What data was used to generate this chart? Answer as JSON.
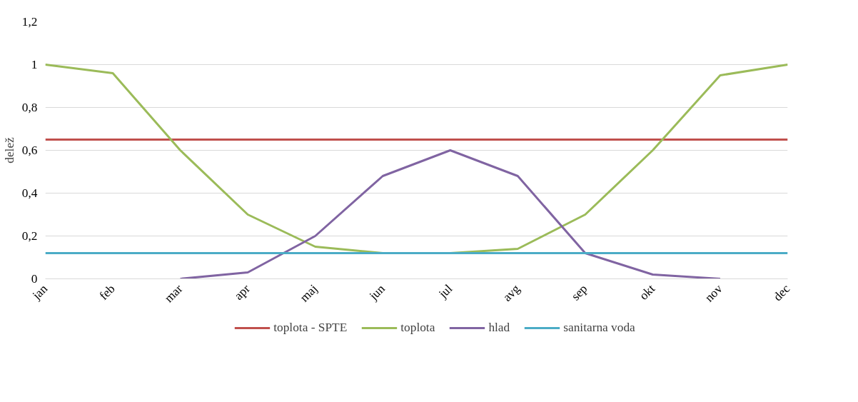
{
  "chart_data": {
    "type": "line",
    "ylabel": "delež",
    "categories": [
      "jan",
      "feb",
      "mar",
      "apr",
      "maj",
      "jun",
      "jul",
      "avg",
      "sep",
      "okt",
      "nov",
      "dec"
    ],
    "series": [
      {
        "name": "toplota - SPTE",
        "color": "#c0504d",
        "values": [
          0.65,
          0.65,
          0.65,
          0.65,
          0.65,
          0.65,
          0.65,
          0.65,
          0.65,
          0.65,
          0.65,
          0.65
        ]
      },
      {
        "name": "toplota",
        "color": "#9bbb59",
        "values": [
          1,
          0.96,
          0.6,
          0.3,
          0.15,
          0.12,
          0.12,
          0.14,
          0.3,
          0.6,
          0.95,
          1
        ]
      },
      {
        "name": "hlad",
        "color": "#8064a2",
        "values": [
          null,
          null,
          0,
          0.03,
          0.2,
          0.48,
          0.6,
          0.48,
          0.12,
          0.02,
          0,
          null
        ]
      },
      {
        "name": "sanitarna voda",
        "color": "#4bacc6",
        "values": [
          0.12,
          0.12,
          0.12,
          0.12,
          0.12,
          0.12,
          0.12,
          0.12,
          0.12,
          0.12,
          0.12,
          0.12
        ]
      }
    ],
    "ylim": [
      0,
      1.2
    ],
    "yticks": [
      0,
      {
        "value": 0.2,
        "label": "0,2"
      },
      {
        "value": 0.4,
        "label": "0,4"
      },
      {
        "value": 0.6,
        "label": "0,6"
      },
      {
        "value": 0.8,
        "label": "0,8"
      },
      1,
      {
        "value": 1.2,
        "label": "1,2"
      }
    ],
    "grid": "y",
    "legend": "bottom",
    "marker": "none",
    "line_style": "solid"
  }
}
